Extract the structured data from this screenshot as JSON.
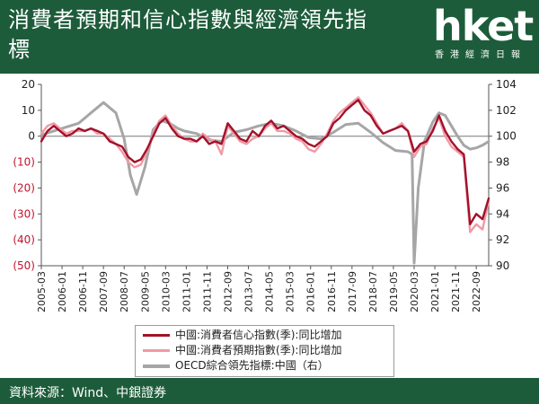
{
  "header": {
    "title": "消費者預期和信心指數與經濟領先指標"
  },
  "logo": {
    "brand": "hket",
    "tagline": "香港經濟日報"
  },
  "footer": {
    "source": "資料來源：Wind、中銀證券"
  },
  "colors": {
    "header_bg": "#1d5c3a",
    "confidence": "#a3112a",
    "expectation": "#ef9aa6",
    "oecd": "#a6a6a6"
  },
  "chart_data": {
    "type": "line",
    "title": "",
    "xlabel": "",
    "ylabel": "",
    "x_ticks": [
      "2005-03",
      "2006-01",
      "2006-11",
      "2007-09",
      "2008-07",
      "2009-05",
      "2010-03",
      "2011-01",
      "2011-11",
      "2012-09",
      "2013-07",
      "2014-05",
      "2015-03",
      "2016-01",
      "2016-11",
      "2017-09",
      "2018-07",
      "2019-05",
      "2020-03",
      "2021-01",
      "2021-11",
      "2022-09"
    ],
    "y_left": {
      "ylim": [
        -50,
        20
      ],
      "ticks": [
        "20",
        "10",
        "0",
        "(10)",
        "(20)",
        "(30)",
        "(40)",
        "(50)"
      ]
    },
    "y_right": {
      "ylim": [
        90,
        104
      ],
      "ticks": [
        "104",
        "102",
        "100",
        "98",
        "96",
        "94",
        "92",
        "90"
      ]
    },
    "grid": false,
    "legend_position": "bottom",
    "series": [
      {
        "name": "中國:消費者信心指數(季):同比增加",
        "axis": "left",
        "points": [
          [
            "2005-03",
            -2
          ],
          [
            "2005-06",
            2
          ],
          [
            "2005-09",
            4
          ],
          [
            "2005-12",
            2
          ],
          [
            "2006-03",
            0
          ],
          [
            "2006-06",
            1
          ],
          [
            "2006-09",
            3
          ],
          [
            "2006-12",
            2
          ],
          [
            "2007-03",
            3
          ],
          [
            "2007-06",
            2
          ],
          [
            "2007-09",
            1
          ],
          [
            "2007-12",
            -2
          ],
          [
            "2008-03",
            -3
          ],
          [
            "2008-06",
            -4
          ],
          [
            "2008-09",
            -8
          ],
          [
            "2008-12",
            -10
          ],
          [
            "2009-03",
            -9
          ],
          [
            "2009-06",
            -5
          ],
          [
            "2009-09",
            0
          ],
          [
            "2009-12",
            5
          ],
          [
            "2010-03",
            7
          ],
          [
            "2010-06",
            3
          ],
          [
            "2010-09",
            0
          ],
          [
            "2010-12",
            -1
          ],
          [
            "2011-03",
            -1
          ],
          [
            "2011-06",
            -2
          ],
          [
            "2011-09",
            0
          ],
          [
            "2011-12",
            -3
          ],
          [
            "2012-03",
            -2
          ],
          [
            "2012-06",
            -3
          ],
          [
            "2012-09",
            5
          ],
          [
            "2012-12",
            2
          ],
          [
            "2013-03",
            -1
          ],
          [
            "2013-06",
            -2
          ],
          [
            "2013-09",
            2
          ],
          [
            "2013-12",
            0
          ],
          [
            "2014-03",
            4
          ],
          [
            "2014-06",
            6
          ],
          [
            "2014-09",
            3
          ],
          [
            "2014-12",
            4
          ],
          [
            "2015-03",
            2
          ],
          [
            "2015-06",
            0
          ],
          [
            "2015-09",
            -1
          ],
          [
            "2015-12",
            -3
          ],
          [
            "2016-03",
            -4
          ],
          [
            "2016-06",
            -2
          ],
          [
            "2016-09",
            0
          ],
          [
            "2016-12",
            5
          ],
          [
            "2017-03",
            7
          ],
          [
            "2017-06",
            10
          ],
          [
            "2017-09",
            12
          ],
          [
            "2017-12",
            14
          ],
          [
            "2018-03",
            10
          ],
          [
            "2018-06",
            8
          ],
          [
            "2018-09",
            4
          ],
          [
            "2018-12",
            1
          ],
          [
            "2019-03",
            2
          ],
          [
            "2019-06",
            3
          ],
          [
            "2019-09",
            4
          ],
          [
            "2019-12",
            2
          ],
          [
            "2020-03",
            -6
          ],
          [
            "2020-06",
            -3
          ],
          [
            "2020-09",
            -2
          ],
          [
            "2020-12",
            2
          ],
          [
            "2021-03",
            8
          ],
          [
            "2021-06",
            2
          ],
          [
            "2021-09",
            -2
          ],
          [
            "2021-12",
            -5
          ],
          [
            "2022-03",
            -7
          ],
          [
            "2022-06",
            -34
          ],
          [
            "2022-09",
            -30
          ],
          [
            "2022-12",
            -32
          ],
          [
            "2023-03",
            -24
          ]
        ]
      },
      {
        "name": "中國:消費者預期指數(季):同比增加",
        "axis": "left",
        "points": [
          [
            "2005-03",
            1
          ],
          [
            "2005-06",
            4
          ],
          [
            "2005-09",
            5
          ],
          [
            "2005-12",
            3
          ],
          [
            "2006-03",
            1
          ],
          [
            "2006-06",
            2
          ],
          [
            "2006-09",
            2
          ],
          [
            "2006-12",
            2
          ],
          [
            "2007-03",
            3
          ],
          [
            "2007-06",
            1
          ],
          [
            "2007-09",
            1
          ],
          [
            "2007-12",
            -1
          ],
          [
            "2008-03",
            -3
          ],
          [
            "2008-06",
            -6
          ],
          [
            "2008-09",
            -10
          ],
          [
            "2008-12",
            -12
          ],
          [
            "2009-03",
            -11
          ],
          [
            "2009-06",
            -6
          ],
          [
            "2009-09",
            1
          ],
          [
            "2009-12",
            6
          ],
          [
            "2010-03",
            8
          ],
          [
            "2010-06",
            4
          ],
          [
            "2010-09",
            1
          ],
          [
            "2010-12",
            -1
          ],
          [
            "2011-03",
            -2
          ],
          [
            "2011-06",
            -2
          ],
          [
            "2011-09",
            1
          ],
          [
            "2011-12",
            -1
          ],
          [
            "2012-03",
            -2
          ],
          [
            "2012-06",
            -7
          ],
          [
            "2012-09",
            4
          ],
          [
            "2012-12",
            1
          ],
          [
            "2013-03",
            -2
          ],
          [
            "2013-06",
            -3
          ],
          [
            "2013-09",
            -1
          ],
          [
            "2013-12",
            0
          ],
          [
            "2014-03",
            3
          ],
          [
            "2014-06",
            5
          ],
          [
            "2014-09",
            2
          ],
          [
            "2014-12",
            2
          ],
          [
            "2015-03",
            1
          ],
          [
            "2015-06",
            -1
          ],
          [
            "2015-09",
            -2
          ],
          [
            "2015-12",
            -5
          ],
          [
            "2016-03",
            -6
          ],
          [
            "2016-06",
            -3
          ],
          [
            "2016-09",
            1
          ],
          [
            "2016-12",
            6
          ],
          [
            "2017-03",
            9
          ],
          [
            "2017-06",
            11
          ],
          [
            "2017-09",
            13
          ],
          [
            "2017-12",
            15
          ],
          [
            "2018-03",
            12
          ],
          [
            "2018-06",
            9
          ],
          [
            "2018-09",
            5
          ],
          [
            "2018-12",
            1
          ],
          [
            "2019-03",
            2
          ],
          [
            "2019-06",
            3
          ],
          [
            "2019-09",
            5
          ],
          [
            "2019-12",
            2
          ],
          [
            "2020-03",
            -8
          ],
          [
            "2020-06",
            -4
          ],
          [
            "2020-09",
            -3
          ],
          [
            "2020-12",
            3
          ],
          [
            "2021-03",
            7
          ],
          [
            "2021-06",
            0
          ],
          [
            "2021-09",
            -4
          ],
          [
            "2021-12",
            -6
          ],
          [
            "2022-03",
            -8
          ],
          [
            "2022-06",
            -37
          ],
          [
            "2022-09",
            -34
          ],
          [
            "2022-12",
            -36
          ],
          [
            "2023-03",
            -25
          ]
        ]
      },
      {
        "name": "OECD綜合領先指標:中國（右）",
        "axis": "right",
        "points": [
          [
            "2005-03",
            100.1
          ],
          [
            "2005-09",
            100.4
          ],
          [
            "2006-03",
            100.7
          ],
          [
            "2006-09",
            101.0
          ],
          [
            "2007-03",
            101.8
          ],
          [
            "2007-09",
            102.6
          ],
          [
            "2008-03",
            101.8
          ],
          [
            "2008-07",
            99.8
          ],
          [
            "2008-10",
            97.0
          ],
          [
            "2009-01",
            95.5
          ],
          [
            "2009-05",
            97.6
          ],
          [
            "2009-09",
            100.5
          ],
          [
            "2010-01",
            101.2
          ],
          [
            "2010-05",
            101.0
          ],
          [
            "2010-09",
            100.6
          ],
          [
            "2010-12",
            100.4
          ],
          [
            "2011-06",
            100.2
          ],
          [
            "2011-12",
            99.7
          ],
          [
            "2012-06",
            99.6
          ],
          [
            "2012-12",
            100.3
          ],
          [
            "2013-06",
            100.5
          ],
          [
            "2013-12",
            100.8
          ],
          [
            "2014-06",
            101.0
          ],
          [
            "2014-12",
            100.8
          ],
          [
            "2015-06",
            100.4
          ],
          [
            "2015-12",
            99.9
          ],
          [
            "2016-06",
            99.8
          ],
          [
            "2016-12",
            100.3
          ],
          [
            "2017-06",
            100.9
          ],
          [
            "2017-12",
            101.0
          ],
          [
            "2018-06",
            100.3
          ],
          [
            "2018-12",
            99.5
          ],
          [
            "2019-06",
            98.9
          ],
          [
            "2019-12",
            98.8
          ],
          [
            "2020-02",
            98.6
          ],
          [
            "2020-03",
            90.2
          ],
          [
            "2020-05",
            96.0
          ],
          [
            "2020-08",
            99.6
          ],
          [
            "2020-12",
            101.1
          ],
          [
            "2021-03",
            101.8
          ],
          [
            "2021-06",
            101.6
          ],
          [
            "2021-09",
            100.8
          ],
          [
            "2021-12",
            100.0
          ],
          [
            "2022-03",
            99.3
          ],
          [
            "2022-06",
            99.0
          ],
          [
            "2022-09",
            99.1
          ],
          [
            "2022-12",
            99.3
          ],
          [
            "2023-03",
            99.6
          ]
        ]
      }
    ]
  }
}
